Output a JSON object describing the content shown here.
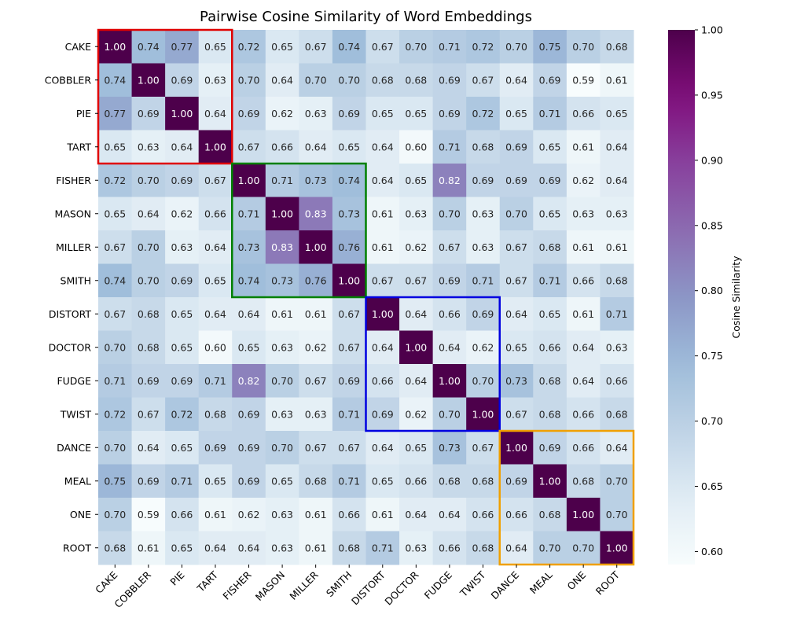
{
  "chart_data": {
    "type": "heatmap",
    "title": "Pairwise Cosine Similarity of Word Embeddings",
    "words": [
      "CAKE",
      "COBBLER",
      "PIE",
      "TART",
      "FISHER",
      "MASON",
      "MILLER",
      "SMITH",
      "DISTORT",
      "DOCTOR",
      "FUDGE",
      "TWIST",
      "DANCE",
      "MEAL",
      "ONE",
      "ROOT"
    ],
    "matrix": [
      [
        1.0,
        0.74,
        0.77,
        0.65,
        0.72,
        0.65,
        0.67,
        0.74,
        0.67,
        0.7,
        0.71,
        0.72,
        0.7,
        0.75,
        0.7,
        0.68
      ],
      [
        0.74,
        1.0,
        0.69,
        0.63,
        0.7,
        0.64,
        0.7,
        0.7,
        0.68,
        0.68,
        0.69,
        0.67,
        0.64,
        0.69,
        0.59,
        0.61
      ],
      [
        0.77,
        0.69,
        1.0,
        0.64,
        0.69,
        0.62,
        0.63,
        0.69,
        0.65,
        0.65,
        0.69,
        0.72,
        0.65,
        0.71,
        0.66,
        0.65
      ],
      [
        0.65,
        0.63,
        0.64,
        1.0,
        0.67,
        0.66,
        0.64,
        0.65,
        0.64,
        0.6,
        0.71,
        0.68,
        0.69,
        0.65,
        0.61,
        0.64
      ],
      [
        0.72,
        0.7,
        0.69,
        0.67,
        1.0,
        0.71,
        0.73,
        0.74,
        0.64,
        0.65,
        0.82,
        0.69,
        0.69,
        0.69,
        0.62,
        0.64
      ],
      [
        0.65,
        0.64,
        0.62,
        0.66,
        0.71,
        1.0,
        0.83,
        0.73,
        0.61,
        0.63,
        0.7,
        0.63,
        0.7,
        0.65,
        0.63,
        0.63
      ],
      [
        0.67,
        0.7,
        0.63,
        0.64,
        0.73,
        0.83,
        1.0,
        0.76,
        0.61,
        0.62,
        0.67,
        0.63,
        0.67,
        0.68,
        0.61,
        0.61
      ],
      [
        0.74,
        0.7,
        0.69,
        0.65,
        0.74,
        0.73,
        0.76,
        1.0,
        0.67,
        0.67,
        0.69,
        0.71,
        0.67,
        0.71,
        0.66,
        0.68
      ],
      [
        0.67,
        0.68,
        0.65,
        0.64,
        0.64,
        0.61,
        0.61,
        0.67,
        1.0,
        0.64,
        0.66,
        0.69,
        0.64,
        0.65,
        0.61,
        0.71
      ],
      [
        0.7,
        0.68,
        0.65,
        0.6,
        0.65,
        0.63,
        0.62,
        0.67,
        0.64,
        1.0,
        0.64,
        0.62,
        0.65,
        0.66,
        0.64,
        0.63
      ],
      [
        0.71,
        0.69,
        0.69,
        0.71,
        0.82,
        0.7,
        0.67,
        0.69,
        0.66,
        0.64,
        1.0,
        0.7,
        0.73,
        0.68,
        0.64,
        0.66
      ],
      [
        0.72,
        0.67,
        0.72,
        0.68,
        0.69,
        0.63,
        0.63,
        0.71,
        0.69,
        0.62,
        0.7,
        1.0,
        0.67,
        0.68,
        0.66,
        0.68
      ],
      [
        0.7,
        0.64,
        0.65,
        0.69,
        0.69,
        0.7,
        0.67,
        0.67,
        0.64,
        0.65,
        0.73,
        0.67,
        1.0,
        0.69,
        0.66,
        0.64
      ],
      [
        0.75,
        0.69,
        0.71,
        0.65,
        0.69,
        0.65,
        0.68,
        0.71,
        0.65,
        0.66,
        0.68,
        0.68,
        0.69,
        1.0,
        0.68,
        0.7
      ],
      [
        0.7,
        0.59,
        0.66,
        0.61,
        0.62,
        0.63,
        0.61,
        0.66,
        0.61,
        0.64,
        0.64,
        0.66,
        0.66,
        0.68,
        1.0,
        0.7
      ],
      [
        0.68,
        0.61,
        0.65,
        0.64,
        0.64,
        0.63,
        0.61,
        0.68,
        0.71,
        0.63,
        0.66,
        0.68,
        0.64,
        0.7,
        0.7,
        1.0
      ]
    ],
    "value_range": [
      0.59,
      1.0
    ],
    "colorbar": {
      "label": "Cosine Similarity",
      "ticks": [
        0.6,
        0.65,
        0.7,
        0.75,
        0.8,
        0.85,
        0.9,
        0.95,
        1.0
      ],
      "tick_labels": [
        "0.60",
        "0.65",
        "0.70",
        "0.75",
        "0.80",
        "0.85",
        "0.90",
        "0.95",
        "1.00"
      ]
    },
    "colormap": "BuPu",
    "groups": [
      {
        "start": 0,
        "end": 3,
        "color": "#e00000"
      },
      {
        "start": 4,
        "end": 7,
        "color": "#008000"
      },
      {
        "start": 8,
        "end": 11,
        "color": "#0000e0"
      },
      {
        "start": 12,
        "end": 15,
        "color": "#f0a000"
      }
    ]
  }
}
